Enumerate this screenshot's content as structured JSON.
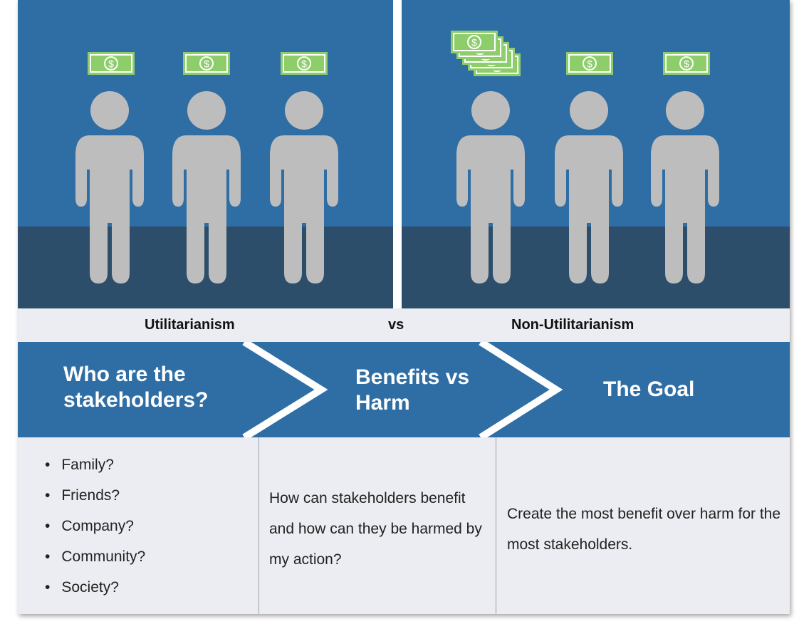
{
  "labels": {
    "left": "Utilitarianism",
    "vs": "vs",
    "right": "Non-Utilitarianism"
  },
  "icons": {
    "person": "person-icon",
    "money": "dollar-bill-icon",
    "money_stack": "money-stack-icon",
    "money_symbol": "$"
  },
  "colors": {
    "panel_blue": "#2f6ea5",
    "floor_blue": "#2c4e6b",
    "person_gray": "#bdbdbd",
    "bill_green": "#8dcd6a",
    "band_blue": "#2f6ea5",
    "content_bg": "#ebedf2"
  },
  "steps": [
    {
      "title": "Who are the stakeholders?"
    },
    {
      "title": "Benefits vs Harm"
    },
    {
      "title": "The Goal"
    }
  ],
  "stakeholders": [
    "Family?",
    "Friends?",
    "Company?",
    "Community?",
    "Society?"
  ],
  "benefits_text": "How can stakeholders benefit and how can they be harmed by my action?",
  "goal_text": "Create the most benefit over harm for the most stakeholders."
}
